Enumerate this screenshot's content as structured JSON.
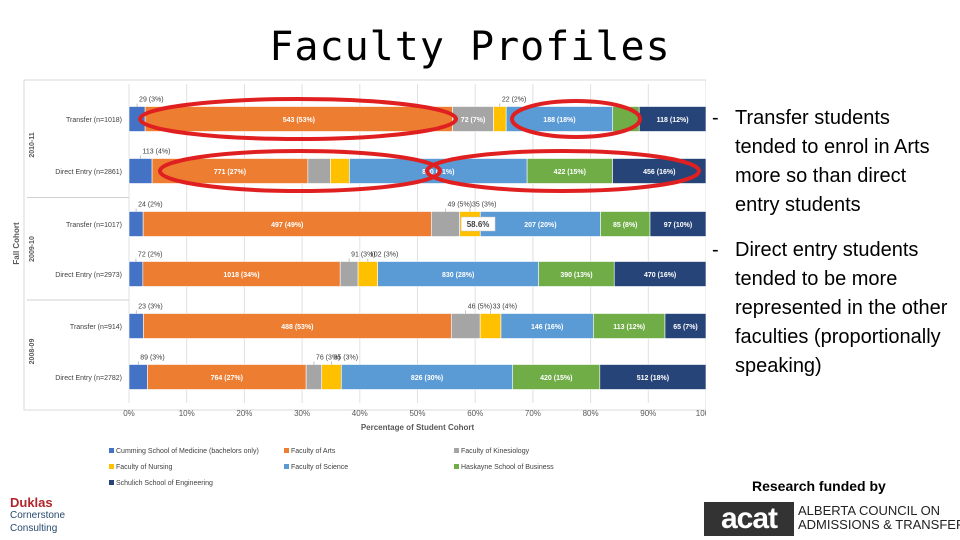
{
  "slide": {
    "title": "Faculty Profiles",
    "bullets": [
      "Transfer students tended to enrol in Arts more so than direct entry students",
      "Direct entry students tended to be more represented in the other faculties (proportionally speaking)"
    ],
    "bullet_marker": "-",
    "funded_text": "Research funded by",
    "council_mark": "acat",
    "council_line1": "ALBERTA COUNCIL ON",
    "council_line2": "ADMISSIONS & TRANSFER",
    "firm_line1": "Duklas",
    "firm_line2": "Cornerstone",
    "firm_line3": "Consulting"
  },
  "chart_data": {
    "type": "bar",
    "orientation": "horizontal-stacked-percent",
    "xlabel": "Percentage of Student Cohort",
    "ylabel": "Fall Cohort",
    "xlim": [
      0,
      100
    ],
    "xticks": [
      "0%",
      "10%",
      "20%",
      "30%",
      "40%",
      "50%",
      "60%",
      "70%",
      "80%",
      "90%",
      "100%"
    ],
    "grid": "vertical",
    "legend_position": "bottom",
    "cohorts": [
      "2010-11",
      "2009-10",
      "2008-09"
    ],
    "categories": [
      "Transfer (n=1018)",
      "Direct Entry (n=2861)",
      "Transfer (n=1017)",
      "Direct Entry (n=2973)",
      "Transfer (n=914)",
      "Direct Entry (n=2782)"
    ],
    "series": [
      {
        "name": "Cumming School of Medicine (bachelors only)",
        "color": "#4472c4",
        "values": [
          2.8,
          4.0,
          2.4,
          2.4,
          2.5,
          3.2
        ],
        "labels": [
          "29 (3%)",
          "113 (4%)",
          "24 (2%)",
          "72 (2%)",
          "23 (3%)",
          "89 (3%)"
        ]
      },
      {
        "name": "Faculty of Arts",
        "color": "#ed7d31",
        "values": [
          53.4,
          27.0,
          48.9,
          34.2,
          53.3,
          27.5
        ],
        "labels": [
          "543 (53%)",
          "771 (27%)",
          "497 (49%)",
          "1018 (34%)",
          "488 (53%)",
          "764 (27%)"
        ]
      },
      {
        "name": "Faculty of Kinesiology",
        "color": "#a5a5a5",
        "values": [
          7.1,
          3.9,
          4.8,
          3.1,
          5.0,
          2.7
        ],
        "labels": [
          "72 (7%)",
          "",
          "49 (5%)",
          "91 (3%)",
          "46 (5%)",
          "76 (3%)"
        ]
      },
      {
        "name": "Faculty of Nursing",
        "color": "#ffc000",
        "values": [
          2.2,
          3.3,
          3.5,
          3.4,
          3.6,
          3.4
        ],
        "labels": [
          "22 (2%)",
          "",
          "35 (3%)",
          "102 (3%)",
          "33 (4%)",
          "95 (3%)"
        ]
      },
      {
        "name": "Faculty of Science",
        "color": "#5b9bd5",
        "values": [
          18.5,
          30.8,
          20.4,
          27.9,
          16.0,
          29.7
        ],
        "labels": [
          "188 (18%)",
          "880 (31%)",
          "207 (20%)",
          "830 (28%)",
          "146 (16%)",
          "826 (30%)"
        ]
      },
      {
        "name": "Haskayne School of Business",
        "color": "#70ad47",
        "values": [
          4.6,
          14.8,
          8.4,
          13.1,
          12.4,
          15.1
        ],
        "labels": [
          "",
          "422 (15%)",
          "85 (8%)",
          "390 (13%)",
          "113 (12%)",
          "420 (15%)"
        ]
      },
      {
        "name": "Schulich School of Engineering",
        "color": "#264478",
        "values": [
          11.6,
          16.2,
          9.5,
          15.9,
          7.1,
          18.4
        ],
        "labels": [
          "118 (12%)",
          "456 (16%)",
          "97 (10%)",
          "470 (16%)",
          "65 (7%)",
          "512 (18%)"
        ]
      }
    ],
    "annotations": [
      {
        "text": "58.6%",
        "row": 2,
        "x": 60.5
      }
    ],
    "highlight_color": "#e02020"
  }
}
